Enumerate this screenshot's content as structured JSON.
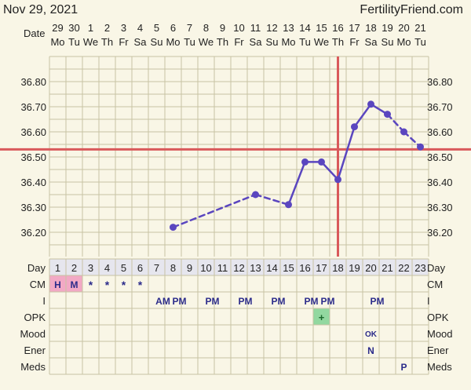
{
  "header": {
    "date": "Nov 29, 2021",
    "site": "FertilityFriend.com"
  },
  "row_labels": {
    "date": "Date",
    "day": "Day",
    "cm": "CM",
    "i": "I",
    "opk": "OPK",
    "mood": "Mood",
    "ener": "Ener",
    "meds": "Meds"
  },
  "date_numbers": [
    "29",
    "30",
    "1",
    "2",
    "3",
    "4",
    "5",
    "6",
    "7",
    "8",
    "9",
    "10",
    "11",
    "12",
    "13",
    "14",
    "15",
    "16",
    "17",
    "18",
    "19",
    "20",
    "21"
  ],
  "weekdays": [
    "Mo",
    "Tu",
    "We",
    "Th",
    "Fr",
    "Sa",
    "Su",
    "Mo",
    "Tu",
    "We",
    "Th",
    "Fr",
    "Sa",
    "Su",
    "Mo",
    "Tu",
    "We",
    "Th",
    "Fr",
    "Sa",
    "Su",
    "Mo",
    "Tu"
  ],
  "day_numbers": [
    "1",
    "2",
    "3",
    "4",
    "5",
    "6",
    "7",
    "8",
    "9",
    "10",
    "11",
    "12",
    "13",
    "14",
    "15",
    "16",
    "17",
    "18",
    "19",
    "20",
    "21",
    "22",
    "23"
  ],
  "rows": {
    "cm": [
      "H",
      "M",
      "*",
      "*",
      "*",
      "*",
      "",
      "",
      "",
      "",
      "",
      "",
      "",
      "",
      "",
      "",
      "",
      "",
      "",
      "",
      "",
      "",
      ""
    ],
    "i": [
      "",
      "",
      "",
      "",
      "",
      "",
      "AM",
      "PM",
      "",
      "PM",
      "",
      "PM",
      "",
      "PM",
      "",
      "PM",
      "PM",
      "",
      "",
      "PM",
      "",
      "",
      ""
    ],
    "opk": [
      "",
      "",
      "",
      "",
      "",
      "",
      "",
      "",
      "",
      "",
      "",
      "",
      "",
      "",
      "",
      "",
      "+",
      "",
      "",
      "",
      "",
      "",
      ""
    ],
    "mood": [
      "",
      "",
      "",
      "",
      "",
      "",
      "",
      "",
      "",
      "",
      "",
      "",
      "",
      "",
      "",
      "",
      "",
      "",
      "",
      "OK",
      "",
      "",
      ""
    ],
    "ener": [
      "",
      "",
      "",
      "",
      "",
      "",
      "",
      "",
      "",
      "",
      "",
      "",
      "",
      "",
      "",
      "",
      "",
      "",
      "",
      "N",
      "",
      "",
      ""
    ],
    "meds": [
      "",
      "",
      "",
      "",
      "",
      "",
      "",
      "",
      "",
      "",
      "",
      "",
      "",
      "",
      "",
      "",
      "",
      "",
      "",
      "",
      "",
      "P",
      ""
    ]
  },
  "colors": {
    "background": "#f9f6e6",
    "grid": "#c8c3a4",
    "line": "#5a46bf",
    "coverline": "#d9595b",
    "cm_highlight": "#f2a9c5",
    "opk_highlight": "#92d8a0",
    "day_row": "#e6e6ee"
  },
  "chart_data": {
    "type": "line",
    "title": "",
    "xlabel": "Day",
    "ylabel": "",
    "ylim": [
      36.15,
      36.85
    ],
    "y_ticks": [
      36.2,
      36.3,
      36.4,
      36.5,
      36.6,
      36.7,
      36.8
    ],
    "series": [
      {
        "x": [
          8,
          13,
          15,
          16,
          17,
          18,
          19,
          20,
          21,
          22,
          23
        ],
        "y": [
          36.22,
          36.35,
          36.31,
          36.48,
          36.48,
          36.41,
          36.62,
          36.71,
          36.67,
          36.6,
          36.54
        ],
        "dashed_into": [
          true,
          true,
          true,
          false,
          false,
          false,
          false,
          false,
          false,
          true,
          true
        ]
      }
    ],
    "coverline": 36.53,
    "ovulation_day": 18,
    "grid": true
  }
}
